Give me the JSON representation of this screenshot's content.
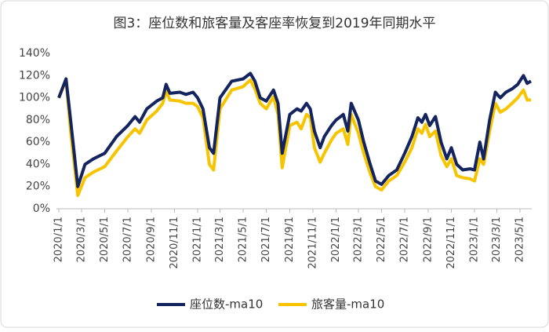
{
  "chart_data": {
    "type": "line",
    "title": "图3：座位数和旅客量及客座率恢复到2019年同期水平",
    "x": [
      "2020/1/1",
      "2020/1/20",
      "2020/2/1",
      "2020/2/20",
      "2020/3/10",
      "2020/4/1",
      "2020/5/1",
      "2020/6/1",
      "2020/7/1",
      "2020/7/20",
      "2020/8/1",
      "2020/8/20",
      "2020/9/15",
      "2020/10/1",
      "2020/10/10",
      "2020/10/20",
      "2020/11/15",
      "2020/12/1",
      "2020/12/20",
      "2021/1/1",
      "2021/1/15",
      "2021/2/1",
      "2021/2/12",
      "2021/3/1",
      "2021/4/1",
      "2021/5/1",
      "2021/5/20",
      "2021/6/1",
      "2021/6/15",
      "2021/7/1",
      "2021/7/20",
      "2021/8/1",
      "2021/8/12",
      "2021/9/1",
      "2021/9/20",
      "2021/10/1",
      "2021/10/15",
      "2021/10/25",
      "2021/11/5",
      "2021/11/20",
      "2021/12/1",
      "2021/12/20",
      "2022/1/1",
      "2022/1/20",
      "2022/2/1",
      "2022/2/10",
      "2022/3/1",
      "2022/3/15",
      "2022/4/1",
      "2022/4/15",
      "2022/5/1",
      "2022/5/20",
      "2022/6/10",
      "2022/7/1",
      "2022/7/20",
      "2022/8/5",
      "2022/8/15",
      "2022/8/25",
      "2022/9/5",
      "2022/9/20",
      "2022/10/5",
      "2022/10/20",
      "2022/11/1",
      "2022/11/15",
      "2022/12/1",
      "2022/12/20",
      "2023/1/1",
      "2023/1/15",
      "2023/1/25",
      "2023/2/10",
      "2023/2/25",
      "2023/3/10",
      "2023/3/25",
      "2023/4/10",
      "2023/4/25",
      "2023/5/10",
      "2023/5/20",
      "2023/5/30"
    ],
    "series": [
      {
        "name": "座位数-ma10",
        "color": "#13245e",
        "values": [
          100,
          117,
          80,
          20,
          40,
          45,
          50,
          65,
          75,
          83,
          78,
          90,
          97,
          100,
          112,
          104,
          105,
          103,
          105,
          100,
          90,
          55,
          50,
          100,
          115,
          117,
          122,
          115,
          100,
          97,
          107,
          95,
          50,
          85,
          90,
          88,
          95,
          90,
          70,
          55,
          65,
          75,
          80,
          85,
          70,
          95,
          80,
          60,
          40,
          25,
          22,
          30,
          35,
          50,
          65,
          82,
          78,
          85,
          75,
          83,
          60,
          45,
          55,
          40,
          35,
          36,
          35,
          60,
          45,
          80,
          105,
          100,
          105,
          108,
          112,
          120,
          113,
          115
        ]
      },
      {
        "name": "旅客量-ma10",
        "color": "#f7c400",
        "values": [
          100,
          116,
          70,
          12,
          28,
          33,
          38,
          52,
          65,
          72,
          68,
          80,
          88,
          95,
          106,
          98,
          97,
          95,
          95,
          92,
          82,
          40,
          35,
          90,
          107,
          110,
          116,
          108,
          95,
          90,
          101,
          85,
          37,
          75,
          78,
          72,
          85,
          82,
          55,
          42,
          50,
          62,
          68,
          72,
          58,
          85,
          68,
          50,
          32,
          20,
          17,
          25,
          30,
          42,
          55,
          72,
          68,
          76,
          65,
          70,
          48,
          38,
          45,
          30,
          28,
          27,
          25,
          45,
          40,
          70,
          95,
          87,
          90,
          95,
          100,
          107,
          98,
          98
        ]
      }
    ],
    "xlim": [
      "2020/1/1",
      "2023/6/1"
    ],
    "xticks": [
      "2020/1/1",
      "2020/3/1",
      "2020/5/1",
      "2020/7/1",
      "2020/9/1",
      "2020/11/1",
      "2021/1/1",
      "2021/3/1",
      "2021/5/1",
      "2021/7/1",
      "2021/9/1",
      "2021/11/1",
      "2022/1/1",
      "2022/3/1",
      "2022/5/1",
      "2022/7/1",
      "2022/9/1",
      "2022/11/1",
      "2023/1/1",
      "2023/3/1",
      "2023/5/1"
    ],
    "ylim": [
      0,
      140
    ],
    "yticks": [
      {
        "value": 0,
        "label": "0%"
      },
      {
        "value": 20,
        "label": "20%"
      },
      {
        "value": 40,
        "label": "40%"
      },
      {
        "value": 60,
        "label": "60%"
      },
      {
        "value": 80,
        "label": "80%"
      },
      {
        "value": 100,
        "label": "100%"
      },
      {
        "value": 120,
        "label": "120%"
      },
      {
        "value": 140,
        "label": "140%"
      }
    ],
    "grid": false,
    "legend": "bottom"
  }
}
